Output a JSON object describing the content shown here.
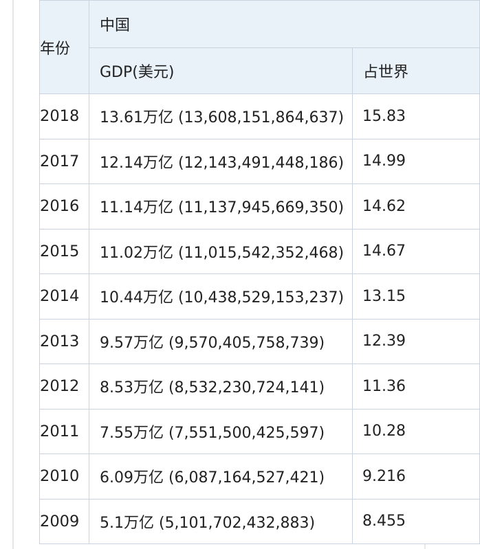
{
  "header": {
    "year": "年份",
    "country": "中国",
    "gdp": "GDP(美元)",
    "share": "占世界"
  },
  "rows": [
    {
      "year": "2018",
      "gdp": "13.61万亿 (13,608,151,864,637)",
      "share": "15.83"
    },
    {
      "year": "2017",
      "gdp": "12.14万亿 (12,143,491,448,186)",
      "share": "14.99"
    },
    {
      "year": "2016",
      "gdp": "11.14万亿 (11,137,945,669,350)",
      "share": "14.62"
    },
    {
      "year": "2015",
      "gdp": "11.02万亿 (11,015,542,352,468)",
      "share": "14.67"
    },
    {
      "year": "2014",
      "gdp": "10.44万亿 (10,438,529,153,237)",
      "share": "13.15"
    },
    {
      "year": "2013",
      "gdp": "9.57万亿 (9,570,405,758,739)",
      "share": "12.39"
    },
    {
      "year": "2012",
      "gdp": "8.53万亿 (8,532,230,724,141)",
      "share": "11.36"
    },
    {
      "year": "2011",
      "gdp": "7.55万亿 (7,551,500,425,597)",
      "share": "10.28"
    },
    {
      "year": "2010",
      "gdp": "6.09万亿 (6,087,164,527,421)",
      "share": "9.216"
    },
    {
      "year": "2009",
      "gdp": "5.1万亿 (5,101,702,432,883)",
      "share": "8.455"
    }
  ]
}
